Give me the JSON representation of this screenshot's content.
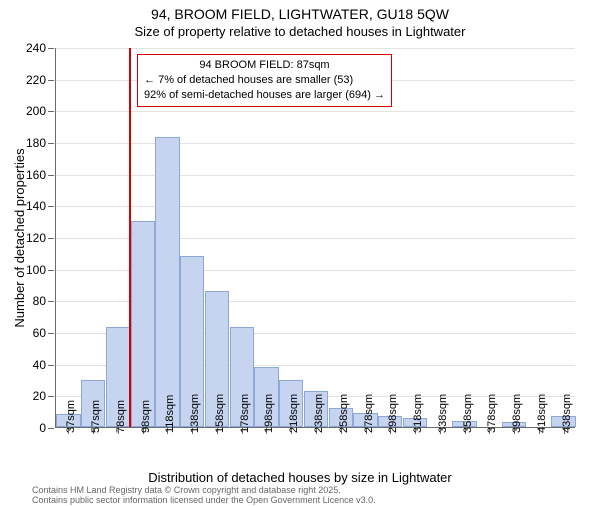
{
  "title_line1": "94, BROOM FIELD, LIGHTWATER, GU18 5QW",
  "title_line2": "Size of property relative to detached houses in Lightwater",
  "y_axis_label": "Number of detached properties",
  "x_axis_label": "Distribution of detached houses by size in Lightwater",
  "chart": {
    "type": "histogram",
    "bar_fill": "#c6d4ef",
    "bar_stroke": "#8da7d6",
    "grid_color": "#e2e2e2",
    "axis_color": "#6b6b6b",
    "background": "#ffffff",
    "y_min": 0,
    "y_max": 240,
    "y_tick_step": 20,
    "x_categories": [
      "37sqm",
      "57sqm",
      "78sqm",
      "98sqm",
      "118sqm",
      "138sqm",
      "158sqm",
      "178sqm",
      "198sqm",
      "218sqm",
      "238sqm",
      "258sqm",
      "278sqm",
      "298sqm",
      "318sqm",
      "338sqm",
      "358sqm",
      "378sqm",
      "398sqm",
      "418sqm",
      "438sqm"
    ],
    "values": [
      8,
      30,
      63,
      130,
      183,
      108,
      86,
      63,
      38,
      30,
      23,
      12,
      9,
      7,
      6,
      0,
      4,
      0,
      3,
      0,
      7
    ],
    "bar_width_ratio": 0.98
  },
  "reference_line": {
    "x_value_sqm": 87,
    "color": "#d40000"
  },
  "annotation": {
    "title": "94 BROOM FIELD: 87sqm",
    "line1": "← 7% of detached houses are smaller (53)",
    "line2": "92% of semi-detached houses are larger (694) →",
    "border_color": "#d40000"
  },
  "footer": {
    "line1": "Contains HM Land Registry data © Crown copyright and database right 2025.",
    "line2": "Contains public sector information licensed under the Open Government Licence v3.0."
  }
}
